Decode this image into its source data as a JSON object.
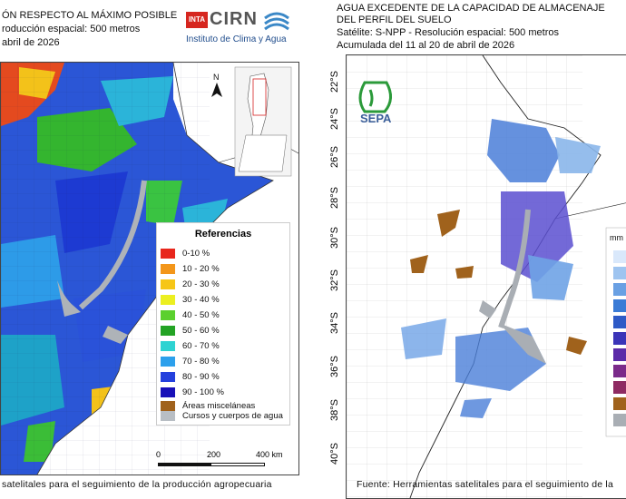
{
  "left": {
    "title_line1": "ÓN RESPECTO AL MÁXIMO POSIBLE",
    "title_line2": "roducción espacial: 500 metros",
    "title_line3": "abril de 2026",
    "logo_org": "INTA",
    "logo_name": "CIRN",
    "logo_sub": "Instituto de Clima y Agua",
    "north": "N",
    "legend": {
      "title": "Referencias",
      "items": [
        {
          "label": "0-10 %",
          "color": "#e8261c"
        },
        {
          "label": "10 - 20 %",
          "color": "#f3961a"
        },
        {
          "label": "20 - 30 %",
          "color": "#f6c617"
        },
        {
          "label": "30 - 40 %",
          "color": "#ecef20"
        },
        {
          "label": "40 - 50 %",
          "color": "#5bd02e"
        },
        {
          "label": "50 - 60 %",
          "color": "#23a324"
        },
        {
          "label": "60 - 70 %",
          "color": "#2ed3d2"
        },
        {
          "label": "70 - 80 %",
          "color": "#2ca0ec"
        },
        {
          "label": "80 - 90 %",
          "color": "#2440dd"
        },
        {
          "label": "90 - 100 %",
          "color": "#1810b8"
        },
        {
          "label": "Áreas misceláneas",
          "color": "#a0621c"
        },
        {
          "label": "Cursos y cuerpos de agua",
          "color": "#b8bec4"
        }
      ]
    },
    "scale": {
      "s0": "0",
      "s1": "200",
      "s2": "400 km"
    },
    "footer": "satelitales para el seguimiento de la producción agropecuaria"
  },
  "right": {
    "title_line1": "AGUA EXCEDENTE DE LA CAPACIDAD DE ALMACENAJE",
    "title_line2": "DEL PERFIL DEL SUELO",
    "title_line3": "Satélite: S-NPP - Resolución espacial: 500 metros",
    "title_line4": "Acumulada del 11 al 20 de abril de 2026",
    "logo": "SEPA",
    "legend_unit": "mm",
    "lat_labels": [
      "22°S",
      "24°S",
      "26°S",
      "28°S",
      "30°S",
      "32°S",
      "34°S",
      "36°S",
      "38°S",
      "40°S"
    ],
    "footer": "Fuente: Herramientas satelitales para el seguimiento de la"
  },
  "colors": {
    "water_gray": "#a9aeb4",
    "border_dark": "#333333",
    "excess_blue": "#4a7ed8"
  }
}
